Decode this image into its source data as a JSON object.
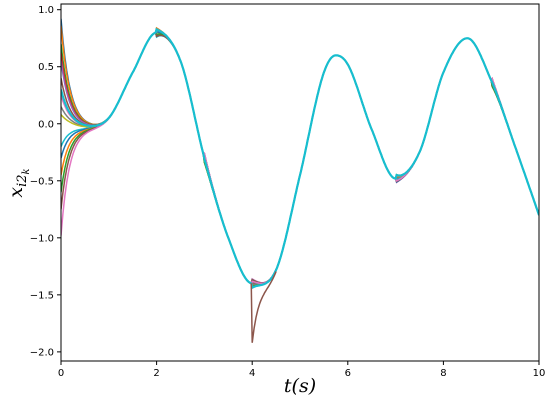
{
  "chart_data": {
    "type": "line",
    "xlabel": "t(s)",
    "ylabel": "x_{i2_k}",
    "xlim": [
      0,
      10
    ],
    "ylim": [
      -2.08,
      1.05
    ],
    "xticks": [
      0,
      2,
      4,
      6,
      8,
      10
    ],
    "yticks": [
      1.0,
      0.5,
      0.0,
      -0.5,
      -1.0,
      -1.5,
      -2.0
    ],
    "xtick_labels": [
      "0",
      "2",
      "4",
      "6",
      "8",
      "10"
    ],
    "ytick_labels": [
      "1.0",
      "0.5",
      "0.0",
      "−0.5",
      "−1.0",
      "−1.5",
      "−2.0"
    ],
    "grid": false,
    "legend": "none",
    "reference_curve": {
      "x": [
        0,
        0.5,
        1.0,
        1.5,
        2.0,
        2.5,
        3.0,
        3.5,
        4.0,
        4.5,
        5.0,
        5.5,
        5.75,
        6.0,
        6.5,
        7.0,
        7.5,
        8.0,
        8.5,
        9.0,
        9.5,
        10.0
      ],
      "y": [
        0.0,
        -0.03,
        0.05,
        0.45,
        0.8,
        0.55,
        -0.3,
        -1.0,
        -1.4,
        -1.28,
        -0.45,
        0.45,
        0.6,
        0.52,
        -0.05,
        -0.48,
        -0.25,
        0.45,
        0.75,
        0.38,
        -0.2,
        -0.8
      ]
    },
    "series": [
      {
        "x0": 0.92,
        "color": "#1f77b4"
      },
      {
        "x0": 0.86,
        "color": "#ff7f0e"
      },
      {
        "x0": 0.7,
        "color": "#2ca02c"
      },
      {
        "x0": 0.62,
        "color": "#d62728"
      },
      {
        "x0": 0.55,
        "color": "#9467bd"
      },
      {
        "x0": 0.4,
        "color": "#8c564b"
      },
      {
        "x0": 0.25,
        "color": "#e377c2"
      },
      {
        "x0": 0.15,
        "color": "#7f7f7f"
      },
      {
        "x0": 0.08,
        "color": "#bcbd22"
      },
      {
        "x0": -0.2,
        "color": "#17becf"
      },
      {
        "x0": -0.3,
        "color": "#1f77b4"
      },
      {
        "x0": -0.45,
        "color": "#ff7f0e"
      },
      {
        "x0": -0.6,
        "color": "#2ca02c"
      },
      {
        "x0": -0.75,
        "color": "#8c564b"
      },
      {
        "x0": -0.98,
        "color": "#e377c2"
      },
      {
        "x0": 0.3,
        "color": "#17becf"
      }
    ],
    "spike": {
      "x": 4.0,
      "y": -1.92,
      "color": "#8c564b"
    }
  }
}
